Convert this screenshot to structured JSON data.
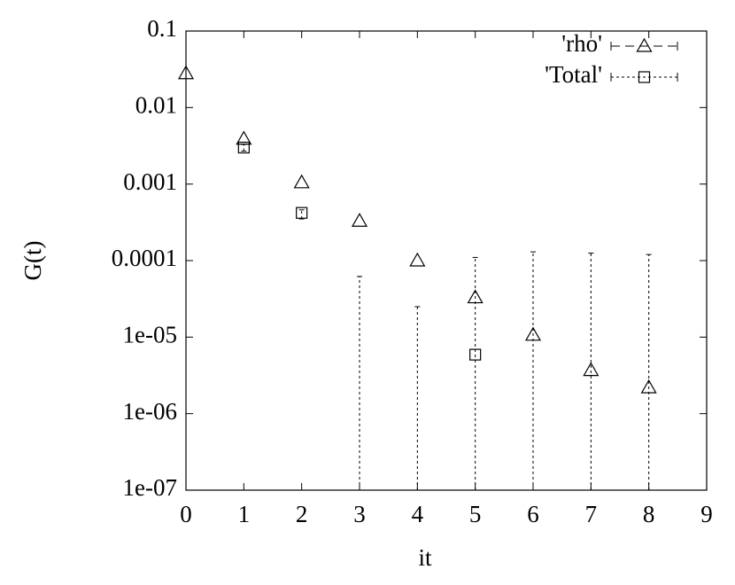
{
  "chart_data": {
    "type": "scatter",
    "x_label": "it",
    "y_label": "G(t)",
    "log_y": true,
    "xlim": [
      0,
      9
    ],
    "xticks": [
      0,
      1,
      2,
      3,
      4,
      5,
      6,
      7,
      8,
      9
    ],
    "ylim": [
      1e-07,
      0.1
    ],
    "yticks": [
      0.1,
      0.01,
      0.001,
      0.0001,
      {
        "value": 1e-05,
        "label": "1e-05"
      },
      {
        "value": 1e-06,
        "label": "1e-06"
      },
      {
        "value": 1e-07,
        "label": "1e-07"
      }
    ],
    "legend": "top-right",
    "series": [
      {
        "name": "'rho'",
        "marker": "triangle",
        "color": "#000000",
        "x": [
          0,
          1,
          2,
          3,
          4,
          5,
          6,
          7,
          8
        ],
        "values": [
          0.028,
          0.0039,
          0.00105,
          0.00033,
          0.0001,
          3.3e-05,
          1.07e-05,
          3.7e-06,
          2.2e-06
        ]
      },
      {
        "name": "'Total'",
        "marker": "square",
        "color": "#000000",
        "x": [
          1,
          2,
          3,
          4,
          5,
          6,
          7,
          8
        ],
        "values": [
          0.003,
          0.00042,
          null,
          null,
          5.9e-06,
          null,
          null,
          null
        ],
        "err_low": [
          0.0027,
          0.00035,
          null,
          null,
          null,
          null,
          null,
          null
        ],
        "err_high": [
          0.0033,
          0.00046,
          6.2e-05,
          2.5e-05,
          0.00011,
          0.00013,
          0.000125,
          0.00012
        ]
      }
    ]
  }
}
